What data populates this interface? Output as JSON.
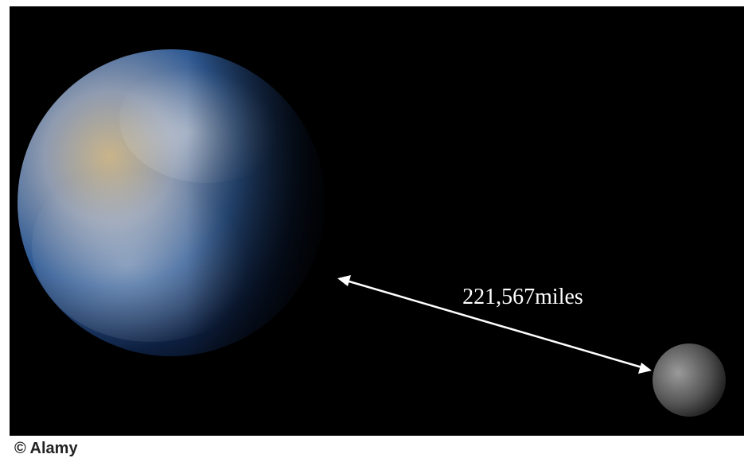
{
  "label": "221,567miles",
  "credit": "© Alamy"
}
